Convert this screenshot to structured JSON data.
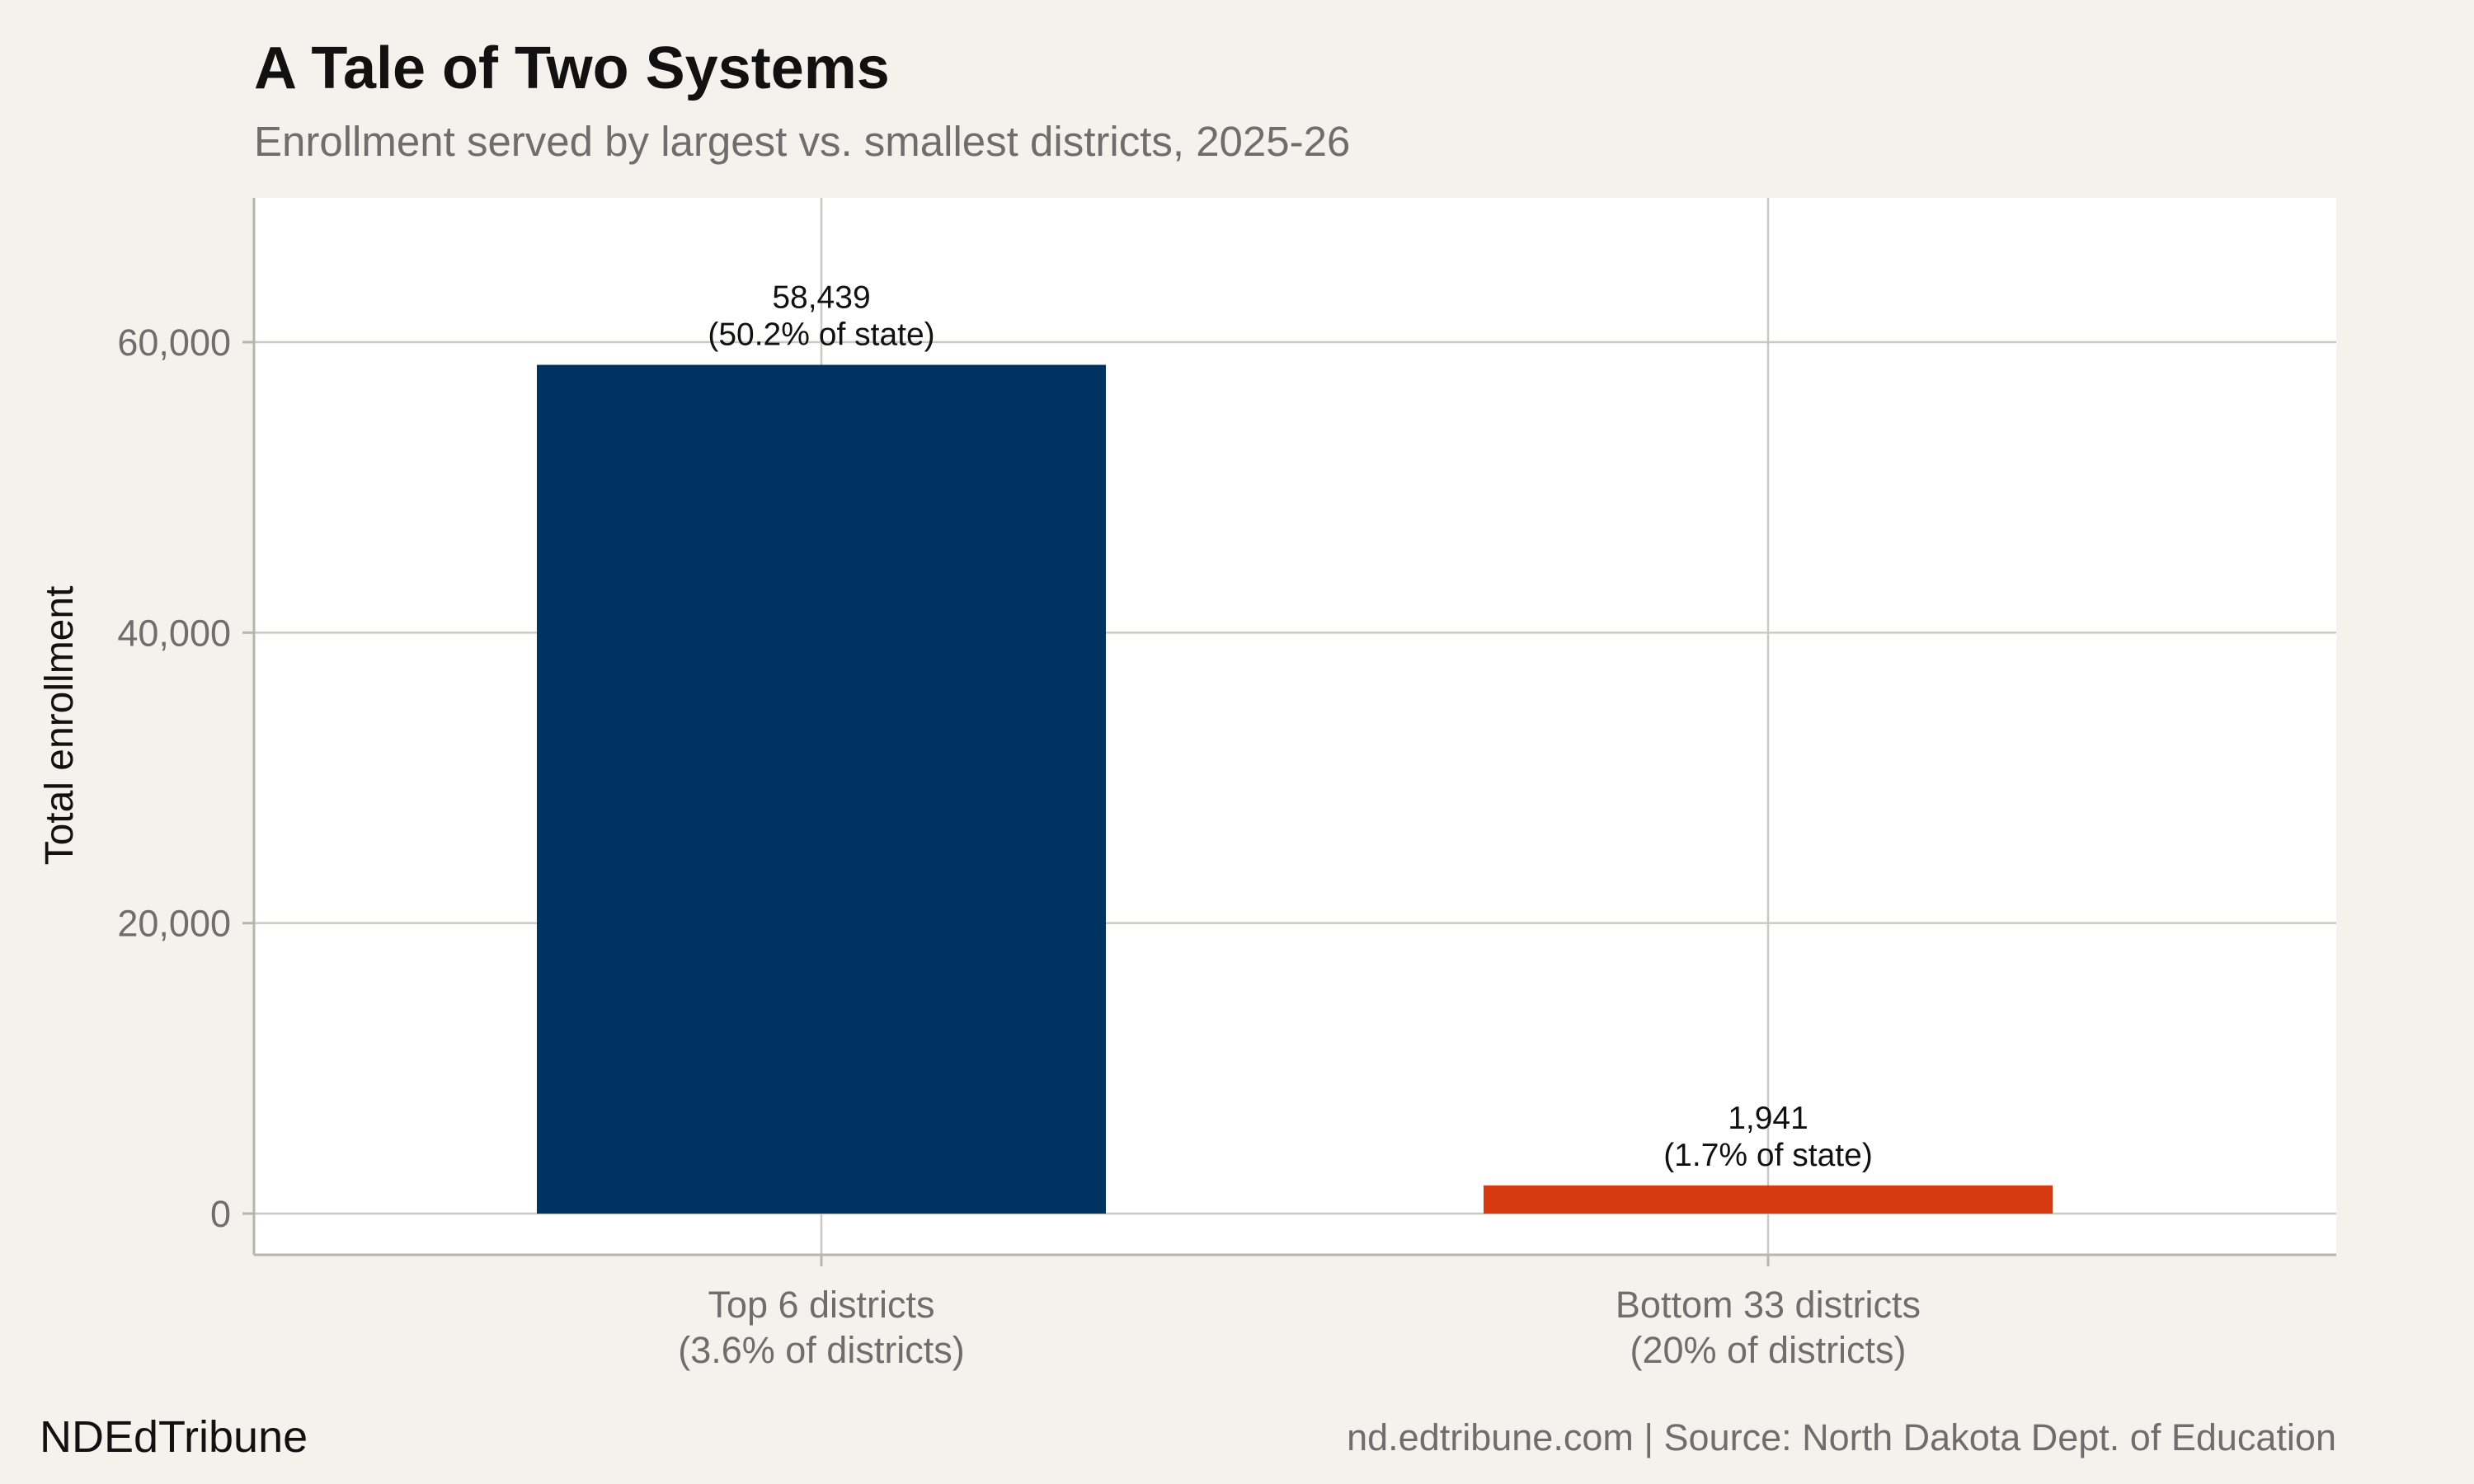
{
  "chart_data": {
    "type": "bar",
    "title": "A Tale of Two Systems",
    "subtitle": "Enrollment served by largest vs. smallest districts, 2025-26",
    "ylabel": "Total enrollment",
    "xlabel": "",
    "ylim": [
      0,
      70000
    ],
    "yticks": [
      0,
      20000,
      40000,
      60000
    ],
    "ytick_labels": [
      "0",
      "20,000",
      "40,000",
      "60,000"
    ],
    "grid": true,
    "categories": [
      [
        "Top 6 districts",
        "(3.6% of districts)"
      ],
      [
        "Bottom 33 districts",
        "(20% of districts)"
      ]
    ],
    "values": [
      58439,
      1941
    ],
    "bar_labels": [
      [
        "58,439",
        "(50.2% of state)"
      ],
      [
        "1,941",
        "(1.7% of state)"
      ]
    ],
    "colors": [
      "#003262",
      "#d5390f"
    ]
  },
  "footer": {
    "brand": "NDEdTribune",
    "source": "nd.edtribune.com | Source: North Dakota Dept. of Education"
  }
}
